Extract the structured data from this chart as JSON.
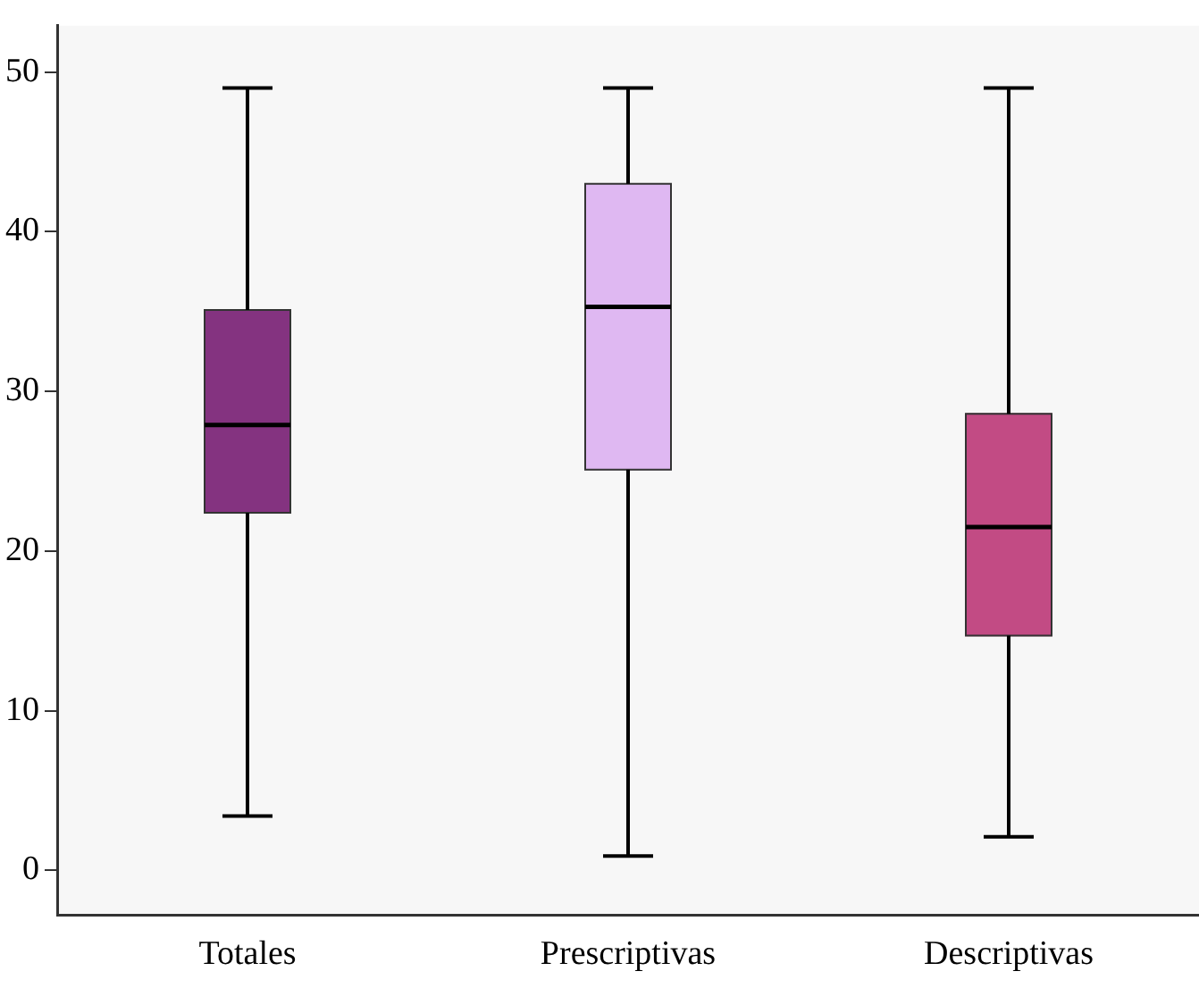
{
  "chart_data": {
    "type": "box",
    "categories": [
      "Totales",
      "Prescriptivas",
      "Descriptivas"
    ],
    "colors": [
      "#843380",
      "#dfb8f2",
      "#c24b84"
    ],
    "boxes": [
      {
        "low": 3.4,
        "q1": 22.4,
        "median": 27.9,
        "q3": 35.1,
        "high": 49
      },
      {
        "low": 0.9,
        "q1": 25.1,
        "median": 35.3,
        "q3": 43,
        "high": 49
      },
      {
        "low": 2.1,
        "q1": 14.7,
        "median": 21.5,
        "q3": 28.6,
        "high": 49
      }
    ],
    "ylim": [
      -2.8,
      52.9
    ],
    "yticks": [
      0,
      10,
      20,
      30,
      40,
      50
    ],
    "grid": false,
    "legend": false
  }
}
